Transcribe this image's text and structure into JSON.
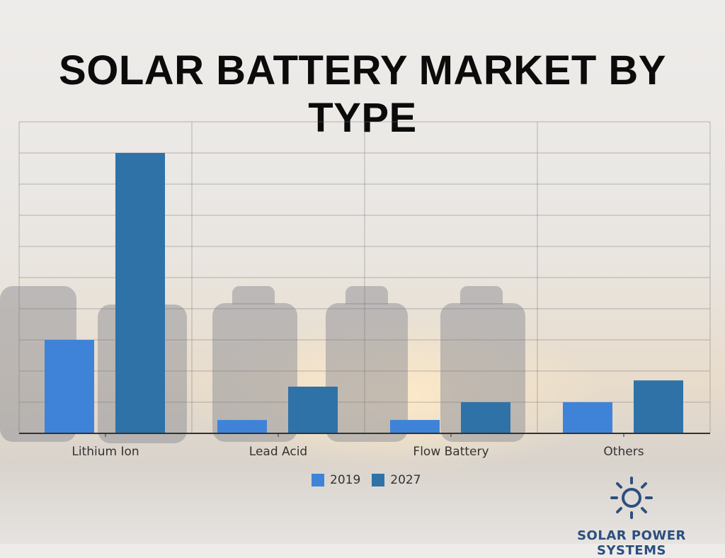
{
  "chart_data": {
    "type": "bar",
    "title": "SOLAR BATTERY MARKET BY TYPE",
    "categories": [
      "Lithium Ion",
      "Lead Acid",
      "Flow Battery",
      "Others"
    ],
    "series": [
      {
        "name": "2019",
        "color": "#3f83d8",
        "values": [
          3.0,
          0.43,
          0.43,
          1.0
        ]
      },
      {
        "name": "2027",
        "color": "#2f72a8",
        "values": [
          9.0,
          1.5,
          1.0,
          1.7
        ]
      }
    ],
    "xlabel": "",
    "ylabel": "",
    "ylim": [
      0,
      10
    ],
    "y_tick_labels_shown": false,
    "grid": true,
    "legend": "bottom"
  },
  "branding": {
    "logo_text": "SOLAR POWER SYSTEMS",
    "logo_icon": "sun-icon",
    "logo_color": "#2c4f80"
  }
}
